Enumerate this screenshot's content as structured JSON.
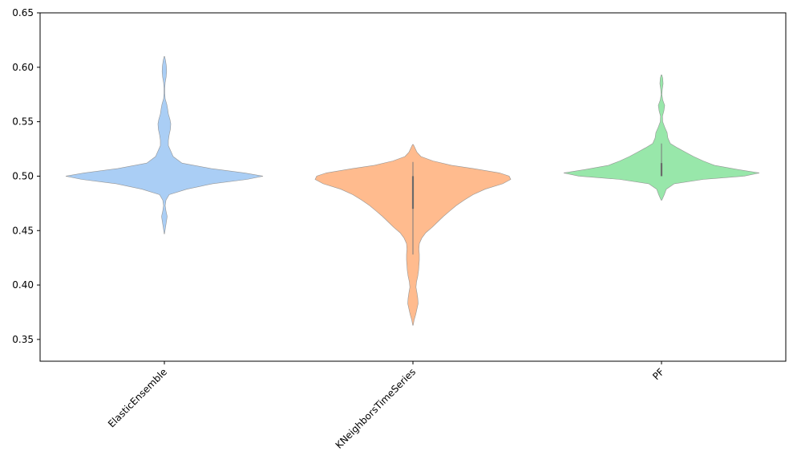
{
  "chart_data": {
    "type": "violin",
    "title": "",
    "xlabel": "",
    "ylabel": "",
    "ylim": [
      0.33,
      0.65
    ],
    "y_ticks": [
      0.35,
      0.4,
      0.45,
      0.5,
      0.55,
      0.6,
      0.65
    ],
    "y_tick_labels": [
      "0.35",
      "0.40",
      "0.45",
      "0.50",
      "0.55",
      "0.60",
      "0.65"
    ],
    "grid": false,
    "legend": "none",
    "categories": [
      "ElasticEnsemble",
      "KNeighborsTimeSeries",
      "PF"
    ],
    "series": [
      {
        "category": "ElasticEnsemble",
        "color": "#a1c9f4",
        "density_profile": [
          [
            0.447,
            0.2
          ],
          [
            0.452,
            1.2
          ],
          [
            0.458,
            2.5
          ],
          [
            0.463,
            3.5
          ],
          [
            0.468,
            2.0
          ],
          [
            0.473,
            1.0
          ],
          [
            0.478,
            2.0
          ],
          [
            0.483,
            6.0
          ],
          [
            0.488,
            28.0
          ],
          [
            0.493,
            60.0
          ],
          [
            0.497,
            103.0
          ],
          [
            0.5,
            123.0
          ],
          [
            0.503,
            100.0
          ],
          [
            0.507,
            58.0
          ],
          [
            0.512,
            22.0
          ],
          [
            0.518,
            11.0
          ],
          [
            0.523,
            8.0
          ],
          [
            0.528,
            5.0
          ],
          [
            0.533,
            5.0
          ],
          [
            0.538,
            6.0
          ],
          [
            0.543,
            7.5
          ],
          [
            0.548,
            8.0
          ],
          [
            0.552,
            7.0
          ],
          [
            0.557,
            5.0
          ],
          [
            0.562,
            4.0
          ],
          [
            0.566,
            3.0
          ],
          [
            0.571,
            1.0
          ],
          [
            0.576,
            0.5
          ],
          [
            0.581,
            0.5
          ],
          [
            0.586,
            1.0
          ],
          [
            0.591,
            2.2
          ],
          [
            0.596,
            2.8
          ],
          [
            0.601,
            2.5
          ],
          [
            0.606,
            1.5
          ],
          [
            0.61,
            0.3
          ]
        ],
        "box": {
          "q1": 0.5,
          "median": 0.5,
          "q3": 0.5,
          "whisker_low": 0.5,
          "whisker_high": 0.5
        }
      },
      {
        "category": "KNeighborsTimeSeries",
        "color": "#ffb482",
        "density_profile": [
          [
            0.363,
            0.3
          ],
          [
            0.368,
            1.5
          ],
          [
            0.373,
            3.5
          ],
          [
            0.378,
            5.0
          ],
          [
            0.383,
            6.5
          ],
          [
            0.388,
            6.0
          ],
          [
            0.393,
            5.0
          ],
          [
            0.398,
            3.8
          ],
          [
            0.403,
            4.5
          ],
          [
            0.408,
            6.0
          ],
          [
            0.413,
            7.0
          ],
          [
            0.418,
            7.5
          ],
          [
            0.423,
            8.0
          ],
          [
            0.428,
            8.0
          ],
          [
            0.433,
            7.5
          ],
          [
            0.438,
            8.0
          ],
          [
            0.443,
            11.0
          ],
          [
            0.448,
            16.0
          ],
          [
            0.453,
            24.0
          ],
          [
            0.458,
            31.0
          ],
          [
            0.463,
            38.0
          ],
          [
            0.468,
            46.0
          ],
          [
            0.473,
            54.0
          ],
          [
            0.478,
            64.0
          ],
          [
            0.483,
            75.0
          ],
          [
            0.488,
            90.0
          ],
          [
            0.493,
            112.0
          ],
          [
            0.497,
            122.0
          ],
          [
            0.5,
            120.0
          ],
          [
            0.503,
            108.0
          ],
          [
            0.507,
            75.0
          ],
          [
            0.51,
            48.0
          ],
          [
            0.514,
            25.0
          ],
          [
            0.518,
            10.0
          ],
          [
            0.522,
            5.0
          ],
          [
            0.526,
            2.5
          ],
          [
            0.529,
            0.5
          ]
        ],
        "box": {
          "q1": 0.47,
          "median": 0.5,
          "q3": 0.5,
          "whisker_low": 0.428,
          "whisker_high": 0.513
        }
      },
      {
        "category": "PF",
        "color": "#8de5a1",
        "density_profile": [
          [
            0.478,
            0.5
          ],
          [
            0.483,
            3.5
          ],
          [
            0.488,
            6.0
          ],
          [
            0.493,
            16.0
          ],
          [
            0.497,
            52.0
          ],
          [
            0.5,
            103.0
          ],
          [
            0.503,
            122.0
          ],
          [
            0.506,
            96.0
          ],
          [
            0.51,
            66.0
          ],
          [
            0.514,
            52.0
          ],
          [
            0.518,
            40.0
          ],
          [
            0.522,
            30.0
          ],
          [
            0.526,
            20.0
          ],
          [
            0.53,
            11.0
          ],
          [
            0.535,
            8.0
          ],
          [
            0.54,
            7.0
          ],
          [
            0.545,
            4.0
          ],
          [
            0.55,
            1.5
          ],
          [
            0.555,
            1.2
          ],
          [
            0.56,
            3.0
          ],
          [
            0.565,
            4.0
          ],
          [
            0.57,
            1.5
          ],
          [
            0.575,
            0.5
          ],
          [
            0.58,
            1.0
          ],
          [
            0.585,
            2.0
          ],
          [
            0.59,
            1.5
          ],
          [
            0.593,
            0.4
          ]
        ],
        "box": {
          "q1": 0.5,
          "median": 0.503,
          "q3": 0.512,
          "whisker_low": 0.5,
          "whisker_high": 0.53
        }
      }
    ]
  }
}
